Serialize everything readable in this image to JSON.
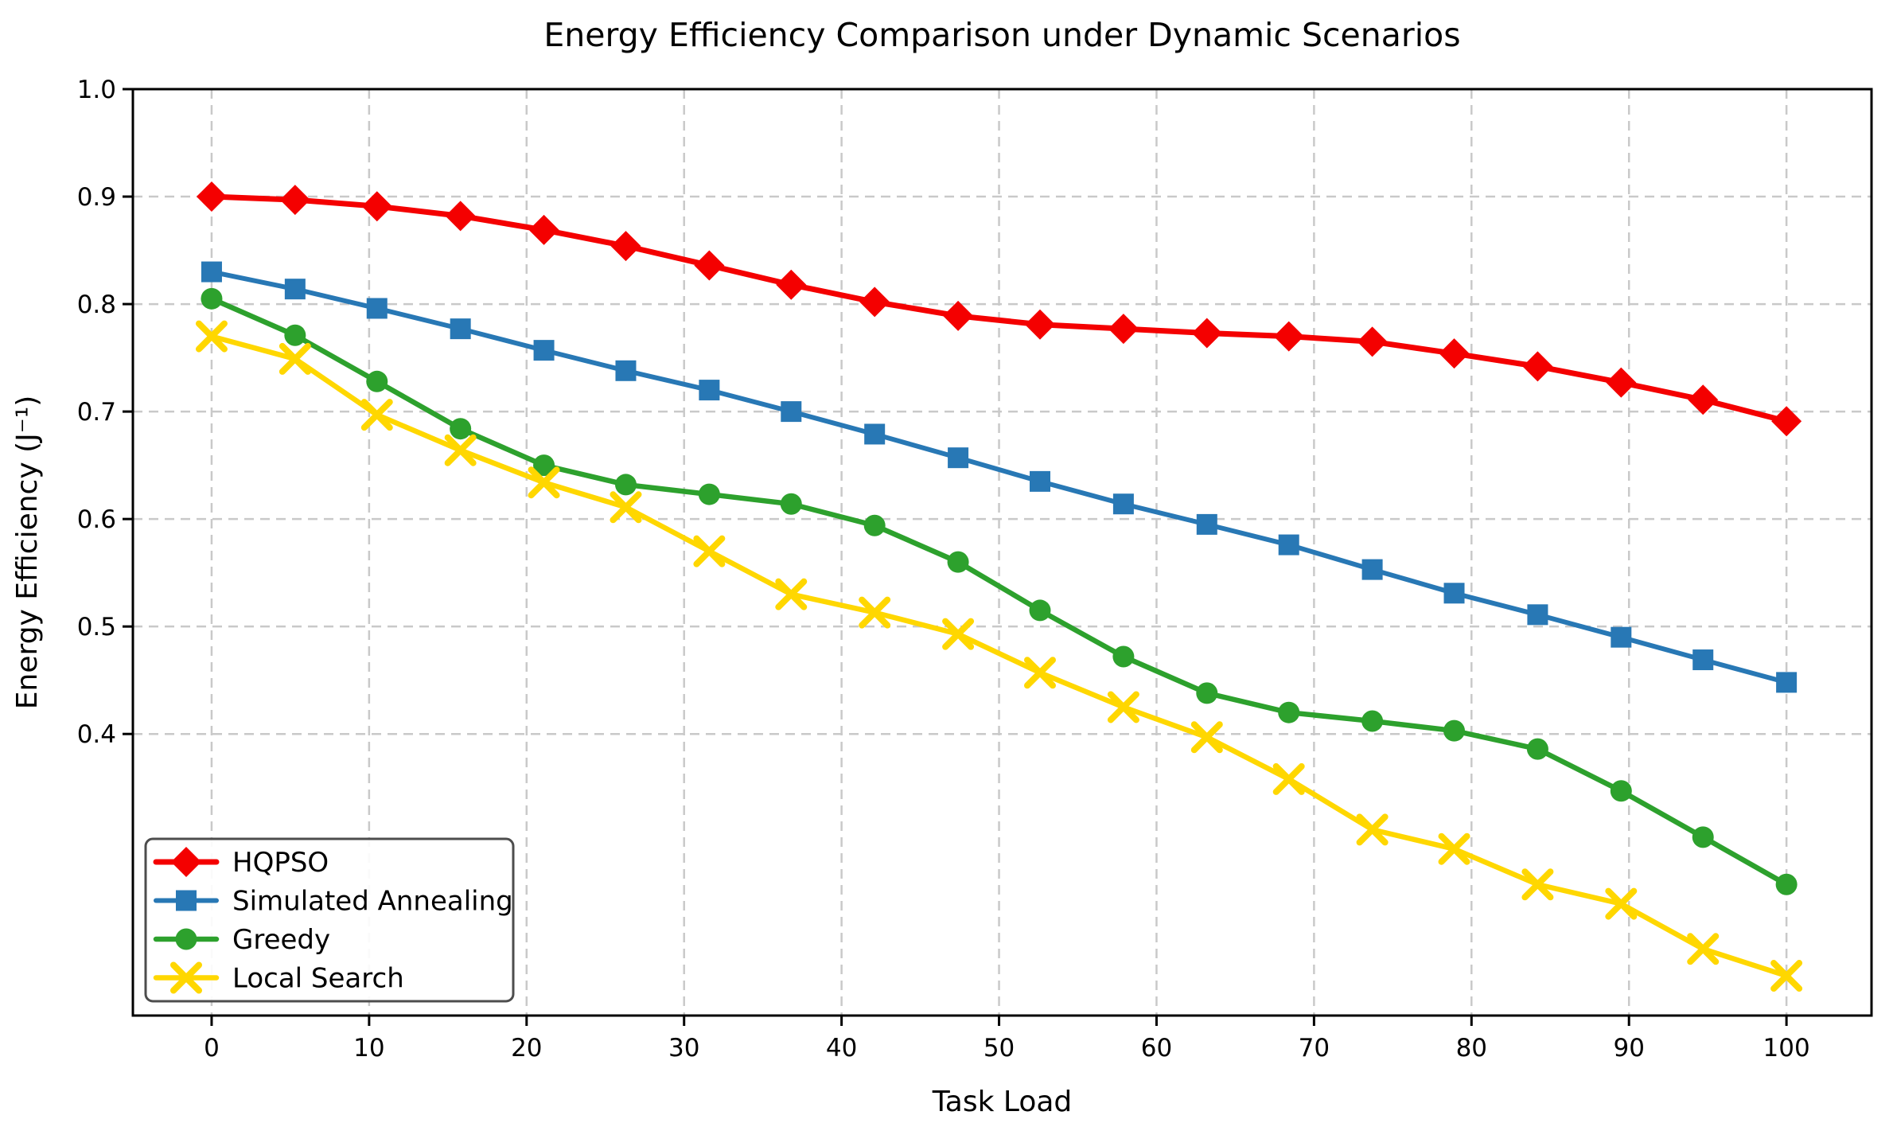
{
  "figure": {
    "background": "#ffffff",
    "grid_color": "#c9c9c9",
    "axis_color": "#000000",
    "legend_border_color": "#4d4d4d",
    "legend_background": "#ffffff"
  },
  "chart_data": {
    "type": "line",
    "title": "Energy Efficiency Comparison under Dynamic Scenarios",
    "xlabel": "Task Load",
    "ylabel": "Energy Efficiency (J⁻¹)",
    "xlim": [
      -5,
      105.4
    ],
    "ylim": [
      0.138,
      1.0
    ],
    "xticks": [
      0,
      10,
      20,
      30,
      40,
      50,
      60,
      70,
      80,
      90,
      100
    ],
    "xtick_labels": [
      "0",
      "10",
      "20",
      "30",
      "40",
      "50",
      "60",
      "70",
      "80",
      "90",
      "100"
    ],
    "yticks": [
      0.4,
      0.5,
      0.6,
      0.7,
      0.8,
      0.9,
      1.0
    ],
    "ytick_labels": [
      "0.4",
      "0.5",
      "0.6",
      "0.7",
      "0.8",
      "0.9",
      "1.0"
    ],
    "grid": true,
    "grid_style": "dashed",
    "legend_position": "lower-left",
    "x": [
      0,
      5.3,
      10.5,
      15.8,
      21.1,
      26.3,
      31.6,
      36.8,
      42.1,
      47.4,
      52.6,
      57.9,
      63.2,
      68.4,
      73.7,
      78.9,
      84.2,
      89.5,
      94.7,
      100
    ],
    "series": [
      {
        "name": "HQPSO",
        "color": "#f40000",
        "marker": "diamond",
        "values": [
          0.9,
          0.897,
          0.891,
          0.882,
          0.869,
          0.854,
          0.836,
          0.818,
          0.802,
          0.789,
          0.781,
          0.777,
          0.773,
          0.77,
          0.765,
          0.754,
          0.742,
          0.727,
          0.711,
          0.691
        ]
      },
      {
        "name": "Simulated Annealing",
        "color": "#2878b5",
        "marker": "square",
        "values": [
          0.83,
          0.814,
          0.796,
          0.777,
          0.757,
          0.738,
          0.72,
          0.7,
          0.679,
          0.657,
          0.635,
          0.614,
          0.595,
          0.576,
          0.553,
          0.531,
          0.511,
          0.49,
          0.469,
          0.448
        ]
      },
      {
        "name": "Greedy",
        "color": "#2da12d",
        "marker": "circle",
        "values": [
          0.805,
          0.771,
          0.728,
          0.684,
          0.65,
          0.632,
          0.623,
          0.614,
          0.594,
          0.56,
          0.515,
          0.472,
          0.438,
          0.42,
          0.412,
          0.403,
          0.386,
          0.347,
          0.304,
          0.26
        ]
      },
      {
        "name": "Local Search",
        "color": "#ffd700",
        "marker": "x",
        "values": [
          0.77,
          0.749,
          0.697,
          0.664,
          0.634,
          0.611,
          0.57,
          0.53,
          0.513,
          0.493,
          0.457,
          0.425,
          0.397,
          0.358,
          0.311,
          0.293,
          0.26,
          0.242,
          0.2,
          0.175
        ]
      }
    ]
  }
}
